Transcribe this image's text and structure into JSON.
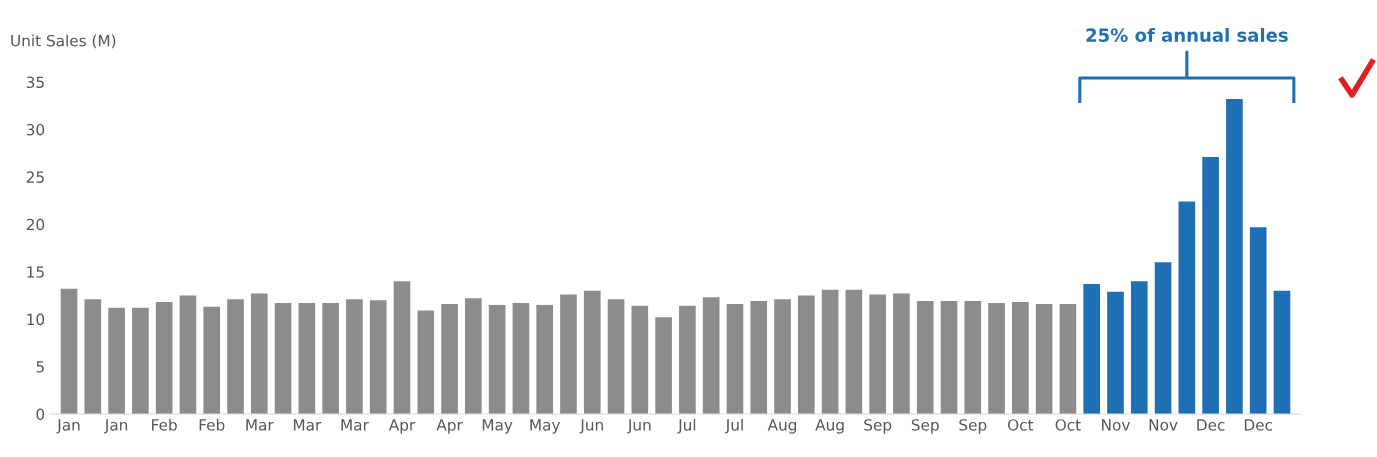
{
  "chart_data": {
    "type": "bar",
    "ylabel": "Unit Sales (M)",
    "categories": [
      "Jan",
      null,
      "Jan",
      null,
      "Feb",
      null,
      "Feb",
      null,
      "Mar",
      null,
      "Mar",
      null,
      "Mar",
      null,
      "Apr",
      null,
      "Apr",
      null,
      "May",
      null,
      "May",
      null,
      "Jun",
      null,
      "Jun",
      null,
      "Jul",
      null,
      "Jul",
      null,
      "Aug",
      null,
      "Aug",
      null,
      "Sep",
      null,
      "Sep",
      null,
      "Sep",
      null,
      "Oct",
      null,
      "Oct",
      null,
      "Nov",
      null,
      "Nov",
      null,
      "Dec",
      null,
      "Dec",
      null
    ],
    "values": [
      13.2,
      12.1,
      11.2,
      11.2,
      11.8,
      12.5,
      11.3,
      12.1,
      12.7,
      11.7,
      11.7,
      11.7,
      12.1,
      12.0,
      14.0,
      10.9,
      11.6,
      12.2,
      11.5,
      11.7,
      11.5,
      12.6,
      13.0,
      12.1,
      11.4,
      10.2,
      11.4,
      12.3,
      11.6,
      11.9,
      12.1,
      12.5,
      13.1,
      13.1,
      12.6,
      12.7,
      11.9,
      11.9,
      11.9,
      11.7,
      11.8,
      11.6,
      11.6,
      13.7,
      12.9,
      14.0,
      16.0,
      22.4,
      27.1,
      33.2,
      19.7,
      13.0
    ],
    "colors": [
      "#8c8c8c",
      "#8c8c8c",
      "#8c8c8c",
      "#8c8c8c",
      "#8c8c8c",
      "#8c8c8c",
      "#8c8c8c",
      "#8c8c8c",
      "#8c8c8c",
      "#8c8c8c",
      "#8c8c8c",
      "#8c8c8c",
      "#8c8c8c",
      "#8c8c8c",
      "#8c8c8c",
      "#8c8c8c",
      "#8c8c8c",
      "#8c8c8c",
      "#8c8c8c",
      "#8c8c8c",
      "#8c8c8c",
      "#8c8c8c",
      "#8c8c8c",
      "#8c8c8c",
      "#8c8c8c",
      "#8c8c8c",
      "#8c8c8c",
      "#8c8c8c",
      "#8c8c8c",
      "#8c8c8c",
      "#8c8c8c",
      "#8c8c8c",
      "#8c8c8c",
      "#8c8c8c",
      "#8c8c8c",
      "#8c8c8c",
      "#8c8c8c",
      "#8c8c8c",
      "#8c8c8c",
      "#8c8c8c",
      "#8c8c8c",
      "#8c8c8c",
      "#8c8c8c",
      "#1f6fb4",
      "#1f6fb4",
      "#1f6fb4",
      "#1f6fb4",
      "#1f6fb4",
      "#1f6fb4",
      "#1f6fb4",
      "#1f6fb4",
      "#1f6fb4"
    ],
    "ylim": [
      0,
      35
    ],
    "yticks": [
      0,
      5,
      10,
      15,
      20,
      25,
      30,
      35
    ],
    "grid": false,
    "legend": false,
    "annotations": [
      "25% of annual sales"
    ]
  }
}
